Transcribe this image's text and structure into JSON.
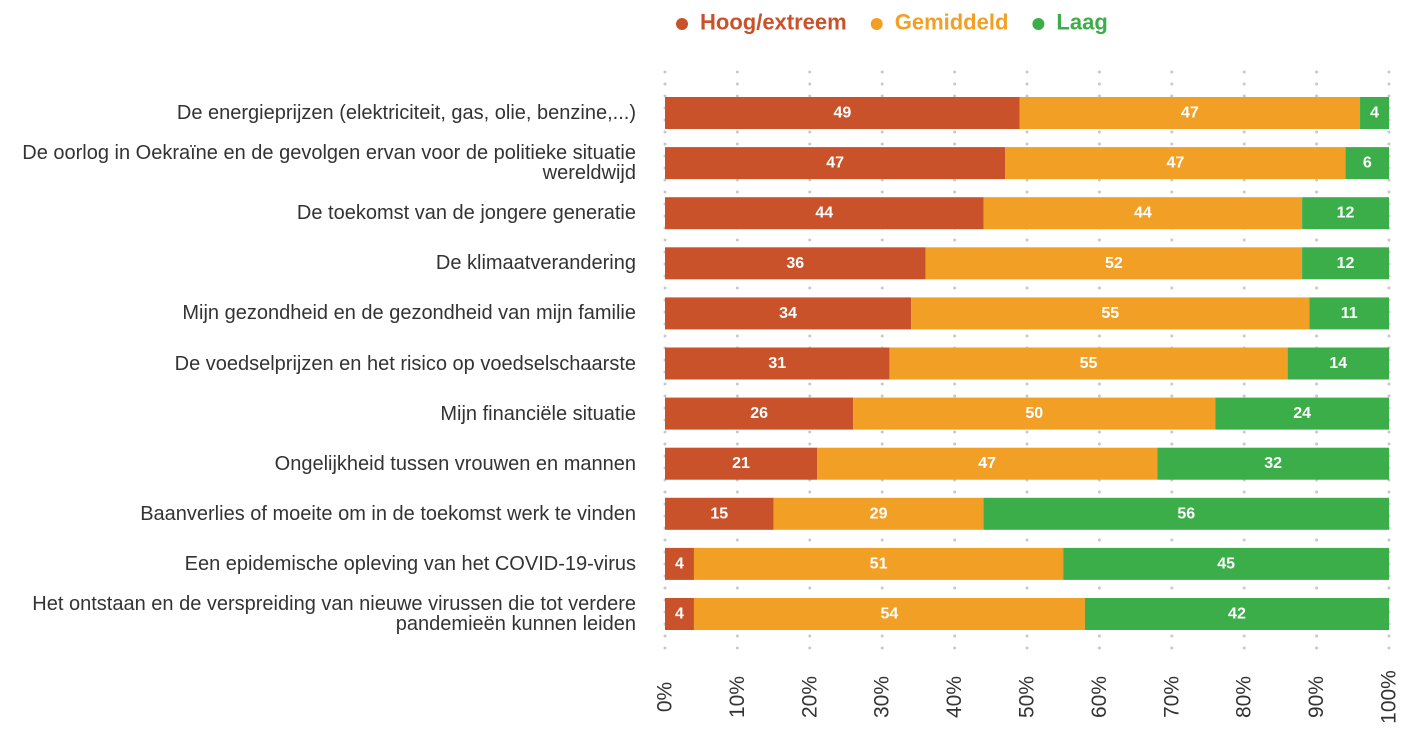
{
  "chart_data": {
    "type": "stacked_barh",
    "categories": [
      "De energieprijzen (elektriciteit, gas, olie, benzine,...)",
      "De oorlog in Oekraïne en de gevolgen ervan voor de politieke situatie wereldwijd",
      "De toekomst van de jongere generatie",
      "De klimaatverandering",
      "Mijn gezondheid en de gezondheid van mijn familie",
      "De voedselprijzen en het risico op voedselschaarste",
      "Mijn financiële situatie",
      "Ongelijkheid tussen vrouwen en mannen",
      "Baanverlies of moeite om in de toekomst werk te vinden",
      "Een epidemische opleving van het COVID-19-virus",
      "Het ontstaan en de verspreiding van nieuwe virussen die tot verdere pandemieën kunnen leiden"
    ],
    "series": [
      {
        "name": "Hoog/extreem",
        "color": "#c9522a",
        "values": [
          49,
          47,
          44,
          36,
          34,
          31,
          26,
          21,
          15,
          4,
          4
        ]
      },
      {
        "name": "Gemiddeld",
        "color": "#f29f25",
        "values": [
          47,
          47,
          44,
          52,
          55,
          55,
          50,
          47,
          29,
          51,
          54
        ]
      },
      {
        "name": "Laag",
        "color": "#3bae4a",
        "values": [
          4,
          6,
          12,
          12,
          11,
          14,
          24,
          32,
          56,
          45,
          42
        ]
      }
    ],
    "xlim": [
      0,
      100
    ],
    "xticks": [
      {
        "value": 0,
        "label": "0%"
      },
      {
        "value": 10,
        "label": "10%"
      },
      {
        "value": 20,
        "label": "20%"
      },
      {
        "value": 30,
        "label": "30%"
      },
      {
        "value": 40,
        "label": "40%"
      },
      {
        "value": 50,
        "label": "50%"
      },
      {
        "value": 60,
        "label": "60%"
      },
      {
        "value": 70,
        "label": "70%"
      },
      {
        "value": 80,
        "label": "80%"
      },
      {
        "value": 90,
        "label": "90%"
      },
      {
        "value": 100,
        "label": "100%"
      }
    ],
    "grid": true,
    "legend": "top"
  }
}
